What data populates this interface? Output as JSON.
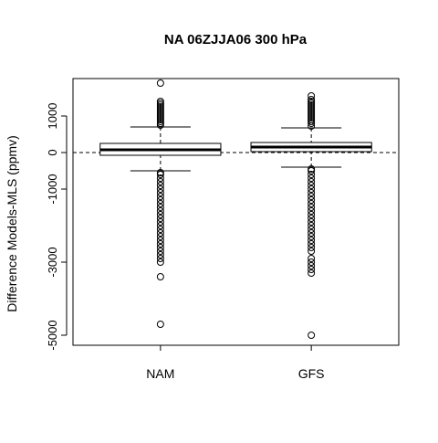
{
  "chart_data": {
    "type": "boxplot",
    "title": "NA 06ZJJA06 300 hPa",
    "y_label": "Difference Models-MLS (ppmv)",
    "categories": [
      "NAM",
      "GFS"
    ],
    "boxes": [
      {
        "whisker_low": -500,
        "q1": -75,
        "median": 75,
        "q3": 250,
        "whisker_high": 700,
        "outliers": [
          750,
          800,
          850,
          900,
          950,
          1000,
          1050,
          1100,
          1150,
          1200,
          1250,
          1300,
          1350,
          1400,
          1900,
          -550,
          -600,
          -700,
          -800,
          -900,
          -1000,
          -1100,
          -1200,
          -1300,
          -1400,
          -1500,
          -1600,
          -1700,
          -1800,
          -1900,
          -2000,
          -2100,
          -2200,
          -2300,
          -2400,
          -2500,
          -2600,
          -2700,
          -2800,
          -2900,
          -3000,
          -3400,
          -4700
        ]
      },
      {
        "whisker_low": -400,
        "q1": 25,
        "median": 150,
        "q3": 275,
        "whisker_high": 675,
        "outliers": [
          725,
          800,
          850,
          900,
          950,
          1000,
          1050,
          1100,
          1150,
          1200,
          1250,
          1300,
          1350,
          1400,
          1450,
          1550,
          -450,
          -500,
          -600,
          -700,
          -800,
          -900,
          -1000,
          -1100,
          -1200,
          -1300,
          -1400,
          -1500,
          -1600,
          -1700,
          -1800,
          -1900,
          -2000,
          -2100,
          -2200,
          -2300,
          -2400,
          -2500,
          -2600,
          -2700,
          -2900,
          -3000,
          -3100,
          -3200,
          -3300,
          -5000
        ]
      }
    ],
    "hline": 0,
    "box_color": "#ffffff",
    "line_color": "#000000",
    "ylim": [
      -5275,
      2025
    ],
    "yticks": [
      -5000,
      -3000,
      -1000,
      0,
      1000
    ]
  }
}
